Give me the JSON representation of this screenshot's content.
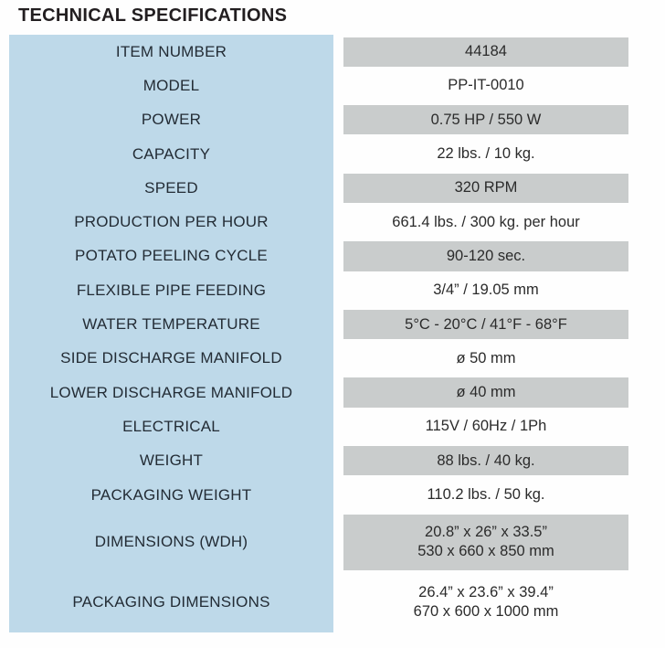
{
  "title": "TECHNICAL SPECIFICATIONS",
  "colors": {
    "label_panel_blue": "#bed9e9",
    "shaded_value_gray": "#c9cccc",
    "label_text": "#232c35",
    "value_text": "#2b2b2b",
    "title_text": "#221e20",
    "background": "#fefefe"
  },
  "table": {
    "rows": [
      {
        "label": "ITEM NUMBER",
        "value": "44184",
        "shaded": true
      },
      {
        "label": "MODEL",
        "value": "PP-IT-0010",
        "shaded": false
      },
      {
        "label": "POWER",
        "value": "0.75 HP / 550 W",
        "shaded": true
      },
      {
        "label": "CAPACITY",
        "value": "22 lbs. / 10 kg.",
        "shaded": false
      },
      {
        "label": "SPEED",
        "value": "320 RPM",
        "shaded": true
      },
      {
        "label": "PRODUCTION PER HOUR",
        "value": "661.4 lbs. / 300 kg. per hour",
        "shaded": false
      },
      {
        "label": "POTATO PEELING CYCLE",
        "value": "90-120 sec.",
        "shaded": true
      },
      {
        "label": "FLEXIBLE PIPE FEEDING",
        "value": "3/4” / 19.05 mm",
        "shaded": false
      },
      {
        "label": "WATER TEMPERATURE",
        "value": "5°C - 20°C / 41°F - 68°F",
        "shaded": true
      },
      {
        "label": "SIDE DISCHARGE MANIFOLD",
        "value": "ø 50 mm",
        "shaded": false
      },
      {
        "label": "LOWER DISCHARGE MANIFOLD",
        "value": "ø 40 mm",
        "shaded": true
      },
      {
        "label": "ELECTRICAL",
        "value": "115V / 60Hz / 1Ph",
        "shaded": false
      },
      {
        "label": "WEIGHT",
        "value": "88 lbs. / 40 kg.",
        "shaded": true
      },
      {
        "label": "PACKAGING WEIGHT",
        "value": "110.2 lbs. / 50 kg.",
        "shaded": false
      },
      {
        "label": "DIMENSIONS (WDH)",
        "value": "20.8” x 26” x 33.5”",
        "value2": "530 x 660 x 850 mm",
        "shaded": true
      },
      {
        "label": "PACKAGING DIMENSIONS",
        "value": "26.4” x 23.6” x 39.4”",
        "value2": "670 x 600 x 1000 mm",
        "shaded": false
      }
    ]
  }
}
